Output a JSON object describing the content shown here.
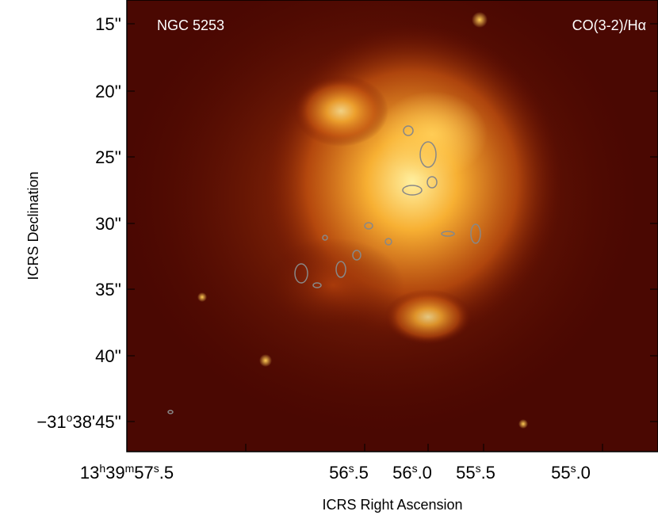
{
  "figure": {
    "label_left": "NGC 5253",
    "label_right": "CO(3-2)/Hα",
    "x_axis_label": "ICRS Right Ascension",
    "y_axis_label": "ICRS Declination",
    "x_ticks": [
      "13h39m57s.5",
      "56s.5",
      "56s.0",
      "55s.5",
      "55s.0"
    ],
    "y_ticks": [
      "15''",
      "20''",
      "25''",
      "30''",
      "35''",
      "40''",
      "−31o38'45''"
    ]
  }
}
